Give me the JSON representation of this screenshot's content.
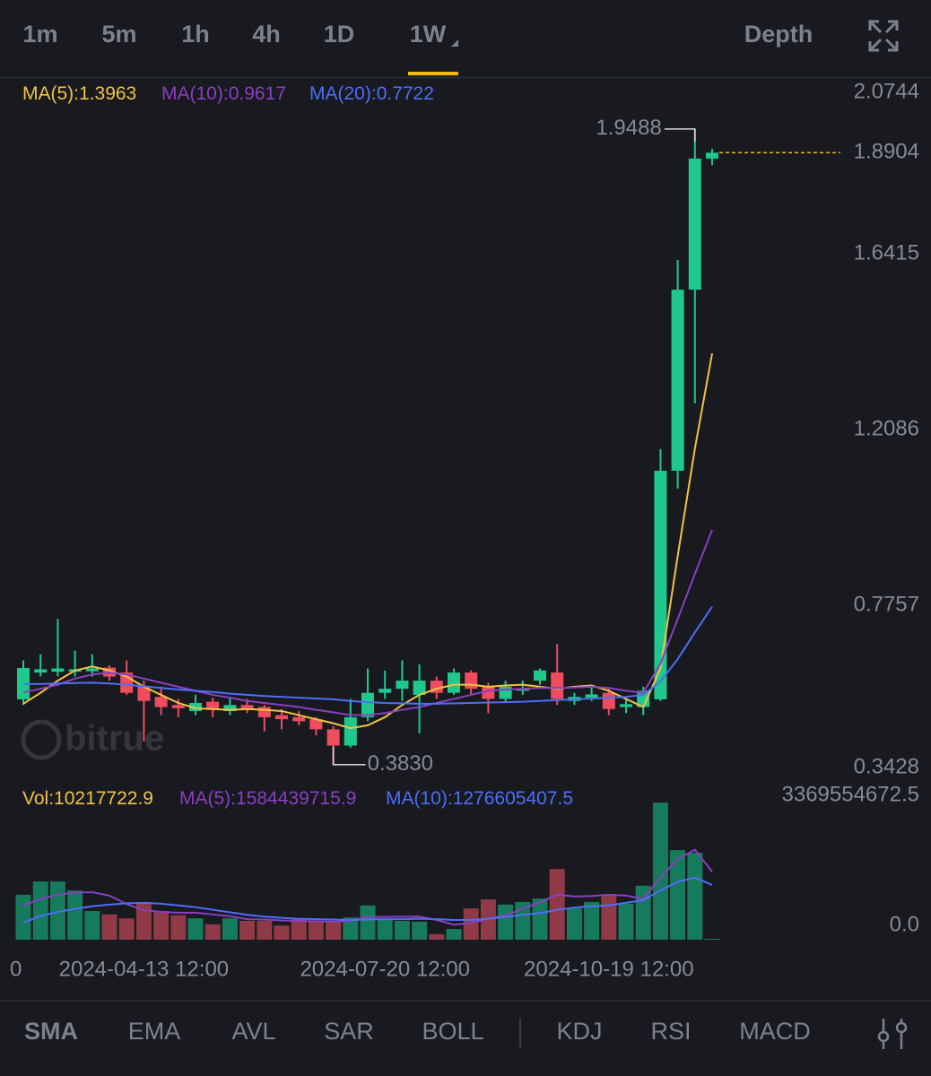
{
  "toolbar": {
    "intervals": [
      "1m",
      "5m",
      "1h",
      "4h",
      "1D",
      "1W"
    ],
    "active_interval": 5,
    "depth": "Depth"
  },
  "chart_data": {
    "type": "candlestick",
    "watermark": "bitrue",
    "categories": [
      null,
      null,
      null,
      null,
      null,
      null,
      null,
      "2024-04-13 12:00",
      null,
      null,
      null,
      null,
      null,
      null,
      null,
      null,
      null,
      null,
      null,
      null,
      null,
      "2024-07-20 12:00",
      null,
      null,
      null,
      null,
      null,
      null,
      null,
      null,
      null,
      null,
      null,
      null,
      "2024-10-19 12:00",
      null,
      null,
      null,
      null,
      null,
      null
    ],
    "x_edge_label": "0",
    "open": [
      0.544,
      0.61,
      0.612,
      0.612,
      0.613,
      0.622,
      0.61,
      0.575,
      0.55,
      0.53,
      0.515,
      0.538,
      0.515,
      0.53,
      0.525,
      0.505,
      0.5,
      0.495,
      0.47,
      0.43,
      0.5,
      0.56,
      0.57,
      0.555,
      0.59,
      0.56,
      0.61,
      0.575,
      0.545,
      0.565,
      0.59,
      0.61,
      0.54,
      0.548,
      0.56,
      0.525,
      0.525,
      0.544,
      1.107,
      1.553,
      1.876
    ],
    "high": [
      0.64,
      0.655,
      0.742,
      0.664,
      0.655,
      0.628,
      0.64,
      0.59,
      0.575,
      0.545,
      0.555,
      0.548,
      0.55,
      0.545,
      0.53,
      0.52,
      0.515,
      0.5,
      0.478,
      0.545,
      0.62,
      0.615,
      0.64,
      0.63,
      0.6,
      0.62,
      0.615,
      0.585,
      0.59,
      0.59,
      0.62,
      0.68,
      0.56,
      0.575,
      0.57,
      0.545,
      0.575,
      1.16,
      1.626,
      1.9488,
      1.9
    ],
    "low": [
      0.53,
      0.6,
      0.6,
      0.6,
      0.6,
      0.59,
      0.555,
      0.44,
      0.505,
      0.5,
      0.505,
      0.5,
      0.505,
      0.51,
      0.465,
      0.47,
      0.48,
      0.455,
      0.383,
      0.425,
      0.49,
      0.545,
      0.54,
      0.46,
      0.545,
      0.555,
      0.555,
      0.51,
      0.535,
      0.555,
      0.58,
      0.53,
      0.53,
      0.54,
      0.505,
      0.51,
      0.505,
      0.54,
      1.063,
      1.273,
      1.86
    ],
    "close": [
      0.621,
      0.618,
      0.62,
      0.618,
      0.62,
      0.6,
      0.56,
      0.54,
      0.525,
      0.522,
      0.535,
      0.518,
      0.53,
      0.522,
      0.5,
      0.495,
      0.49,
      0.47,
      0.43,
      0.5,
      0.56,
      0.57,
      0.59,
      0.59,
      0.56,
      0.61,
      0.57,
      0.545,
      0.575,
      0.57,
      0.615,
      0.545,
      0.55,
      0.556,
      0.52,
      0.532,
      0.565,
      1.107,
      1.553,
      1.876,
      1.8904
    ],
    "up_color": "#1fc88c",
    "down_color": "#ee4d5e",
    "current_price_color": "#f0b90b",
    "low_marker": {
      "value": 0.383,
      "label": "0.3830"
    },
    "ylim": [
      0.3428,
      2.0744
    ],
    "yticks": [
      2.0744,
      1.6415,
      1.2086,
      0.7757,
      0.3428
    ],
    "series": [
      {
        "name": "MA(5):",
        "color": "#f0c341",
        "values": [
          0.533,
          0.56,
          0.59,
          0.615,
          0.625,
          0.615,
          0.6,
          0.575,
          0.555,
          0.535,
          0.522,
          0.52,
          0.518,
          0.52,
          0.518,
          0.515,
          0.505,
          0.495,
          0.485,
          0.473,
          0.48,
          0.5,
          0.53,
          0.555,
          0.57,
          0.58,
          0.58,
          0.575,
          0.578,
          0.58,
          0.575,
          0.57,
          0.575,
          0.578,
          0.565,
          0.545,
          0.525,
          0.62,
          0.897,
          1.162,
          1.3963
        ]
      },
      {
        "name": "MA(10):",
        "color": "#8a3fc0",
        "values": [
          0.561,
          0.57,
          0.58,
          0.595,
          0.605,
          0.61,
          0.605,
          0.595,
          0.585,
          0.575,
          0.565,
          0.555,
          0.548,
          0.54,
          0.535,
          0.53,
          0.525,
          0.518,
          0.512,
          0.505,
          0.505,
          0.51,
          0.518,
          0.525,
          0.535,
          0.545,
          0.555,
          0.565,
          0.568,
          0.57,
          0.572,
          0.572,
          0.573,
          0.575,
          0.572,
          0.565,
          0.56,
          0.632,
          0.742,
          0.853,
          0.9617
        ]
      },
      {
        "name": "MA(20):",
        "color": "#4f6ef7",
        "values": [
          0.581,
          0.582,
          0.583,
          0.584,
          0.585,
          0.583,
          0.58,
          0.576,
          0.572,
          0.568,
          0.565,
          0.562,
          0.558,
          0.555,
          0.552,
          0.55,
          0.548,
          0.546,
          0.544,
          0.54,
          0.537,
          0.535,
          0.534,
          0.533,
          0.533,
          0.534,
          0.535,
          0.536,
          0.537,
          0.538,
          0.54,
          0.542,
          0.544,
          0.546,
          0.548,
          0.55,
          0.555,
          0.588,
          0.643,
          0.709,
          0.7722
        ]
      }
    ],
    "volume": {
      "name": "Vol:",
      "up_color": "#167a5c",
      "down_color": "#8f3a46",
      "values": [
        1050000000.0,
        1360000000.0,
        1360000000.0,
        1150000000.0,
        670000000.0,
        590000000.0,
        500000000.0,
        840000000.0,
        670000000.0,
        570000000.0,
        500000000.0,
        360000000.0,
        500000000.0,
        440000000.0,
        440000000.0,
        330000000.0,
        500000000.0,
        420000000.0,
        420000000.0,
        520000000.0,
        800000000.0,
        500000000.0,
        440000000.0,
        420000000.0,
        130000000.0,
        250000000.0,
        730000000.0,
        940000000.0,
        820000000.0,
        880000000.0,
        960000000.0,
        1650000000.0,
        730000000.0,
        880000000.0,
        1050000000.0,
        840000000.0,
        1260000000.0,
        3200000000.0,
        2090000000.0,
        2030000000.0,
        10217722.9
      ],
      "ylim": [
        0,
        3369554672.5
      ],
      "yticks": [
        3369554672.5,
        {
          "value": 0,
          "label": "0.0"
        }
      ],
      "series": [
        {
          "name": "MA(5):",
          "color": "#8a3fc0",
          "values": [
            800000000.0,
            950000000.0,
            1050000000.0,
            1100000000.0,
            1110000000.0,
            1030000000.0,
            830000000.0,
            690000000.0,
            650000000.0,
            630000000.0,
            630000000.0,
            590000000.0,
            550000000.0,
            480000000.0,
            470000000.0,
            450000000.0,
            440000000.0,
            430000000.0,
            420000000.0,
            440000000.0,
            530000000.0,
            530000000.0,
            540000000.0,
            540000000.0,
            460000000.0,
            350000000.0,
            390000000.0,
            490000000.0,
            570000000.0,
            720000000.0,
            870000000.0,
            1050000000.0,
            1010000000.0,
            1020000000.0,
            1050000000.0,
            1030000000.0,
            950000000.0,
            1450000000.0,
            1880000000.0,
            2100000000.0,
            1584439715.9
          ]
        },
        {
          "name": "MA(10):",
          "color": "#4f6ef7",
          "values": [
            400000000.0,
            550000000.0,
            650000000.0,
            720000000.0,
            780000000.0,
            820000000.0,
            850000000.0,
            860000000.0,
            840000000.0,
            800000000.0,
            760000000.0,
            700000000.0,
            640000000.0,
            580000000.0,
            540000000.0,
            510000000.0,
            490000000.0,
            480000000.0,
            470000000.0,
            460000000.0,
            470000000.0,
            480000000.0,
            480000000.0,
            490000000.0,
            480000000.0,
            460000000.0,
            460000000.0,
            490000000.0,
            530000000.0,
            580000000.0,
            620000000.0,
            700000000.0,
            750000000.0,
            780000000.0,
            800000000.0,
            860000000.0,
            920000000.0,
            1150000000.0,
            1350000000.0,
            1450000000.0,
            1276605407.5
          ]
        }
      ]
    }
  },
  "indicator_tabs": {
    "main": [
      "SMA",
      "EMA",
      "AVL",
      "SAR",
      "BOLL"
    ],
    "sub": [
      "KDJ",
      "RSI",
      "MACD"
    ],
    "active": 0
  }
}
